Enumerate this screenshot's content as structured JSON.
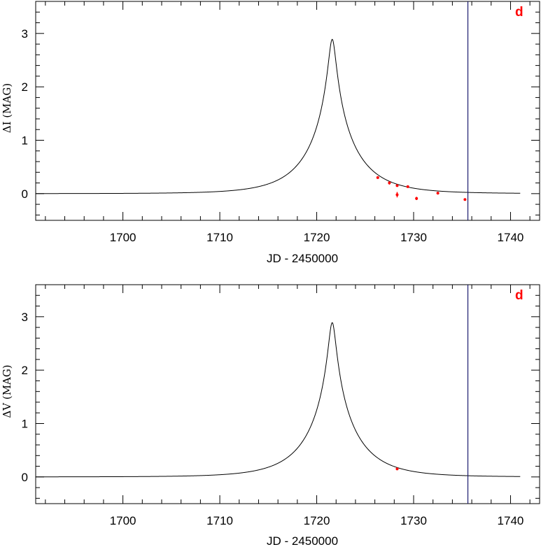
{
  "chart_data": [
    {
      "type": "line",
      "panel": "top",
      "panel_label": "d",
      "xlabel": "JD - 2450000",
      "ylabel": "ΔI (MAG)",
      "xlim": [
        1691,
        1743
      ],
      "ylim": [
        -0.5,
        3.6
      ],
      "xticks": [
        1700,
        1710,
        1720,
        1730,
        1740
      ],
      "xtick_labels": [
        "1700",
        "1710",
        "1720",
        "1730",
        "1740"
      ],
      "yticks": [
        0,
        1,
        2,
        3
      ],
      "ytick_labels": [
        "0",
        "1",
        "2",
        "3"
      ],
      "model": {
        "t0": 1721.6,
        "u0": 0.07,
        "tE": 5.0,
        "x_start": 1691,
        "x_end": 1741
      },
      "vertical_line_x": 1735.6,
      "points": [
        {
          "x": 1726.3,
          "y": 0.3,
          "err": 0.02
        },
        {
          "x": 1727.5,
          "y": 0.2,
          "err": 0.03
        },
        {
          "x": 1728.3,
          "y": 0.15,
          "err": 0.02
        },
        {
          "x": 1728.3,
          "y": -0.02,
          "err": 0.05
        },
        {
          "x": 1729.4,
          "y": 0.13,
          "err": 0.02
        },
        {
          "x": 1730.3,
          "y": -0.09,
          "err": 0.03
        },
        {
          "x": 1732.5,
          "y": 0.01,
          "err": 0.02
        },
        {
          "x": 1735.3,
          "y": -0.11,
          "err": 0.02
        }
      ],
      "colors": {
        "model": "#000000",
        "points": "#ff0000",
        "vline": "#1a1a6e",
        "label": "#ff0000"
      }
    },
    {
      "type": "line",
      "panel": "bottom",
      "panel_label": "d",
      "xlabel": "JD - 2450000",
      "ylabel": "ΔV (MAG)",
      "xlim": [
        1691,
        1743
      ],
      "ylim": [
        -0.5,
        3.6
      ],
      "xticks": [
        1700,
        1710,
        1720,
        1730,
        1740
      ],
      "xtick_labels": [
        "1700",
        "1710",
        "1720",
        "1730",
        "1740"
      ],
      "yticks": [
        0,
        1,
        2,
        3
      ],
      "ytick_labels": [
        "0",
        "1",
        "2",
        "3"
      ],
      "model": {
        "t0": 1721.6,
        "u0": 0.07,
        "tE": 5.0,
        "x_start": 1691,
        "x_end": 1741
      },
      "vertical_line_x": 1735.6,
      "points": [
        {
          "x": 1728.3,
          "y": 0.15,
          "err": 0.01
        }
      ],
      "colors": {
        "model": "#000000",
        "points": "#ff0000",
        "vline": "#1a1a6e",
        "label": "#ff0000"
      }
    }
  ]
}
